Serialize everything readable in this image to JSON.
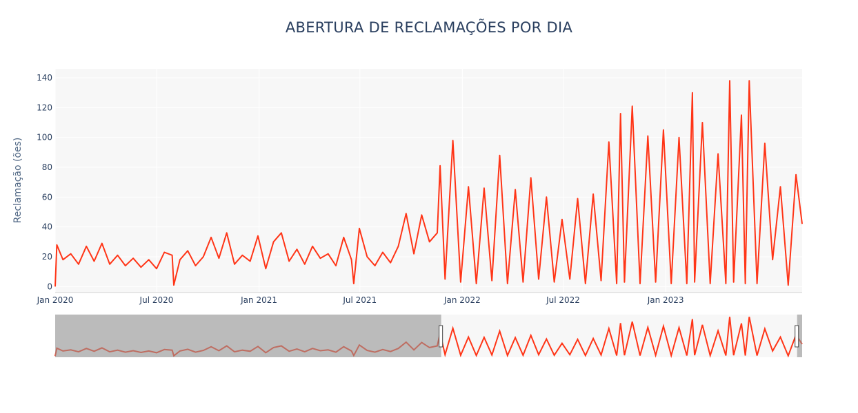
{
  "chart_data": {
    "type": "line",
    "title": "ABERTURA DE RECLAMAÇÕES POR DIA",
    "xlabel": "",
    "ylabel": "Reclamação (ões)",
    "xlim": [
      "2020-01-01",
      "2023-09-03"
    ],
    "ylim": [
      -4,
      146
    ],
    "x_ticks": [
      "Jan 2020",
      "Jul 2020",
      "Jan 2021",
      "Jul 2021",
      "Jan 2022",
      "Jul 2022",
      "Jan 2023"
    ],
    "x_tick_dates": [
      "2020-01-01",
      "2020-07-01",
      "2021-01-01",
      "2021-07-01",
      "2022-01-01",
      "2022-07-01",
      "2023-01-01"
    ],
    "y_ticks": [
      0,
      20,
      40,
      60,
      80,
      100,
      120,
      140
    ],
    "grid": true,
    "line_color": "#ff3517",
    "plot_bg": "#f7f7f7",
    "range_slider": {
      "visible": true,
      "selected_range": [
        "2021-11-24",
        "2023-08-25"
      ],
      "mask_color": "#939393"
    },
    "series": [
      {
        "values_note": "daily counts estimated from the plot; peaks approximated by 14-day segments",
        "points": [
          [
            "2020-01-01",
            0
          ],
          [
            "2020-01-04",
            28
          ],
          [
            "2020-01-15",
            18
          ],
          [
            "2020-01-29",
            22
          ],
          [
            "2020-02-12",
            15
          ],
          [
            "2020-02-26",
            27
          ],
          [
            "2020-03-11",
            17
          ],
          [
            "2020-03-25",
            29
          ],
          [
            "2020-04-08",
            15
          ],
          [
            "2020-04-22",
            21
          ],
          [
            "2020-05-06",
            14
          ],
          [
            "2020-05-20",
            19
          ],
          [
            "2020-06-03",
            13
          ],
          [
            "2020-06-17",
            18
          ],
          [
            "2020-07-01",
            12
          ],
          [
            "2020-07-15",
            23
          ],
          [
            "2020-07-29",
            21
          ],
          [
            "2020-08-01",
            1
          ],
          [
            "2020-08-12",
            18
          ],
          [
            "2020-08-26",
            24
          ],
          [
            "2020-09-09",
            14
          ],
          [
            "2020-09-23",
            20
          ],
          [
            "2020-10-07",
            33
          ],
          [
            "2020-10-21",
            19
          ],
          [
            "2020-11-04",
            36
          ],
          [
            "2020-11-18",
            15
          ],
          [
            "2020-12-02",
            21
          ],
          [
            "2020-12-16",
            17
          ],
          [
            "2020-12-30",
            34
          ],
          [
            "2021-01-13",
            12
          ],
          [
            "2021-01-27",
            30
          ],
          [
            "2021-02-10",
            36
          ],
          [
            "2021-02-24",
            17
          ],
          [
            "2021-03-10",
            25
          ],
          [
            "2021-03-24",
            15
          ],
          [
            "2021-04-07",
            27
          ],
          [
            "2021-04-21",
            19
          ],
          [
            "2021-05-05",
            22
          ],
          [
            "2021-05-19",
            14
          ],
          [
            "2021-06-02",
            33
          ],
          [
            "2021-06-16",
            18
          ],
          [
            "2021-06-20",
            2
          ],
          [
            "2021-06-30",
            39
          ],
          [
            "2021-07-14",
            20
          ],
          [
            "2021-07-28",
            14
          ],
          [
            "2021-08-11",
            23
          ],
          [
            "2021-08-25",
            16
          ],
          [
            "2021-09-08",
            27
          ],
          [
            "2021-09-22",
            49
          ],
          [
            "2021-10-06",
            22
          ],
          [
            "2021-10-20",
            48
          ],
          [
            "2021-11-03",
            30
          ],
          [
            "2021-11-17",
            36
          ],
          [
            "2021-11-22",
            81
          ],
          [
            "2021-12-01",
            5
          ],
          [
            "2021-12-15",
            98
          ],
          [
            "2021-12-29",
            3
          ],
          [
            "2022-01-12",
            67
          ],
          [
            "2022-01-26",
            2
          ],
          [
            "2022-02-09",
            66
          ],
          [
            "2022-02-23",
            4
          ],
          [
            "2022-03-09",
            88
          ],
          [
            "2022-03-23",
            2
          ],
          [
            "2022-04-06",
            65
          ],
          [
            "2022-04-20",
            3
          ],
          [
            "2022-05-04",
            73
          ],
          [
            "2022-05-18",
            5
          ],
          [
            "2022-06-01",
            60
          ],
          [
            "2022-06-15",
            3
          ],
          [
            "2022-06-29",
            45
          ],
          [
            "2022-07-13",
            5
          ],
          [
            "2022-07-27",
            59
          ],
          [
            "2022-08-10",
            2
          ],
          [
            "2022-08-24",
            62
          ],
          [
            "2022-09-07",
            4
          ],
          [
            "2022-09-21",
            97
          ],
          [
            "2022-10-05",
            2
          ],
          [
            "2022-10-12",
            116
          ],
          [
            "2022-10-19",
            3
          ],
          [
            "2022-11-02",
            121
          ],
          [
            "2022-11-16",
            2
          ],
          [
            "2022-11-30",
            101
          ],
          [
            "2022-12-14",
            3
          ],
          [
            "2022-12-28",
            105
          ],
          [
            "2023-01-11",
            2
          ],
          [
            "2023-01-25",
            100
          ],
          [
            "2023-02-08",
            2
          ],
          [
            "2023-02-18",
            130
          ],
          [
            "2023-02-22",
            3
          ],
          [
            "2023-03-08",
            110
          ],
          [
            "2023-03-22",
            2
          ],
          [
            "2023-04-05",
            89
          ],
          [
            "2023-04-19",
            2
          ],
          [
            "2023-04-26",
            138
          ],
          [
            "2023-05-03",
            3
          ],
          [
            "2023-05-17",
            115
          ],
          [
            "2023-05-24",
            2
          ],
          [
            "2023-05-31",
            138
          ],
          [
            "2023-06-14",
            2
          ],
          [
            "2023-06-28",
            96
          ],
          [
            "2023-07-12",
            18
          ],
          [
            "2023-07-26",
            67
          ],
          [
            "2023-08-09",
            1
          ],
          [
            "2023-08-23",
            75
          ],
          [
            "2023-09-03",
            42
          ]
        ]
      }
    ]
  }
}
